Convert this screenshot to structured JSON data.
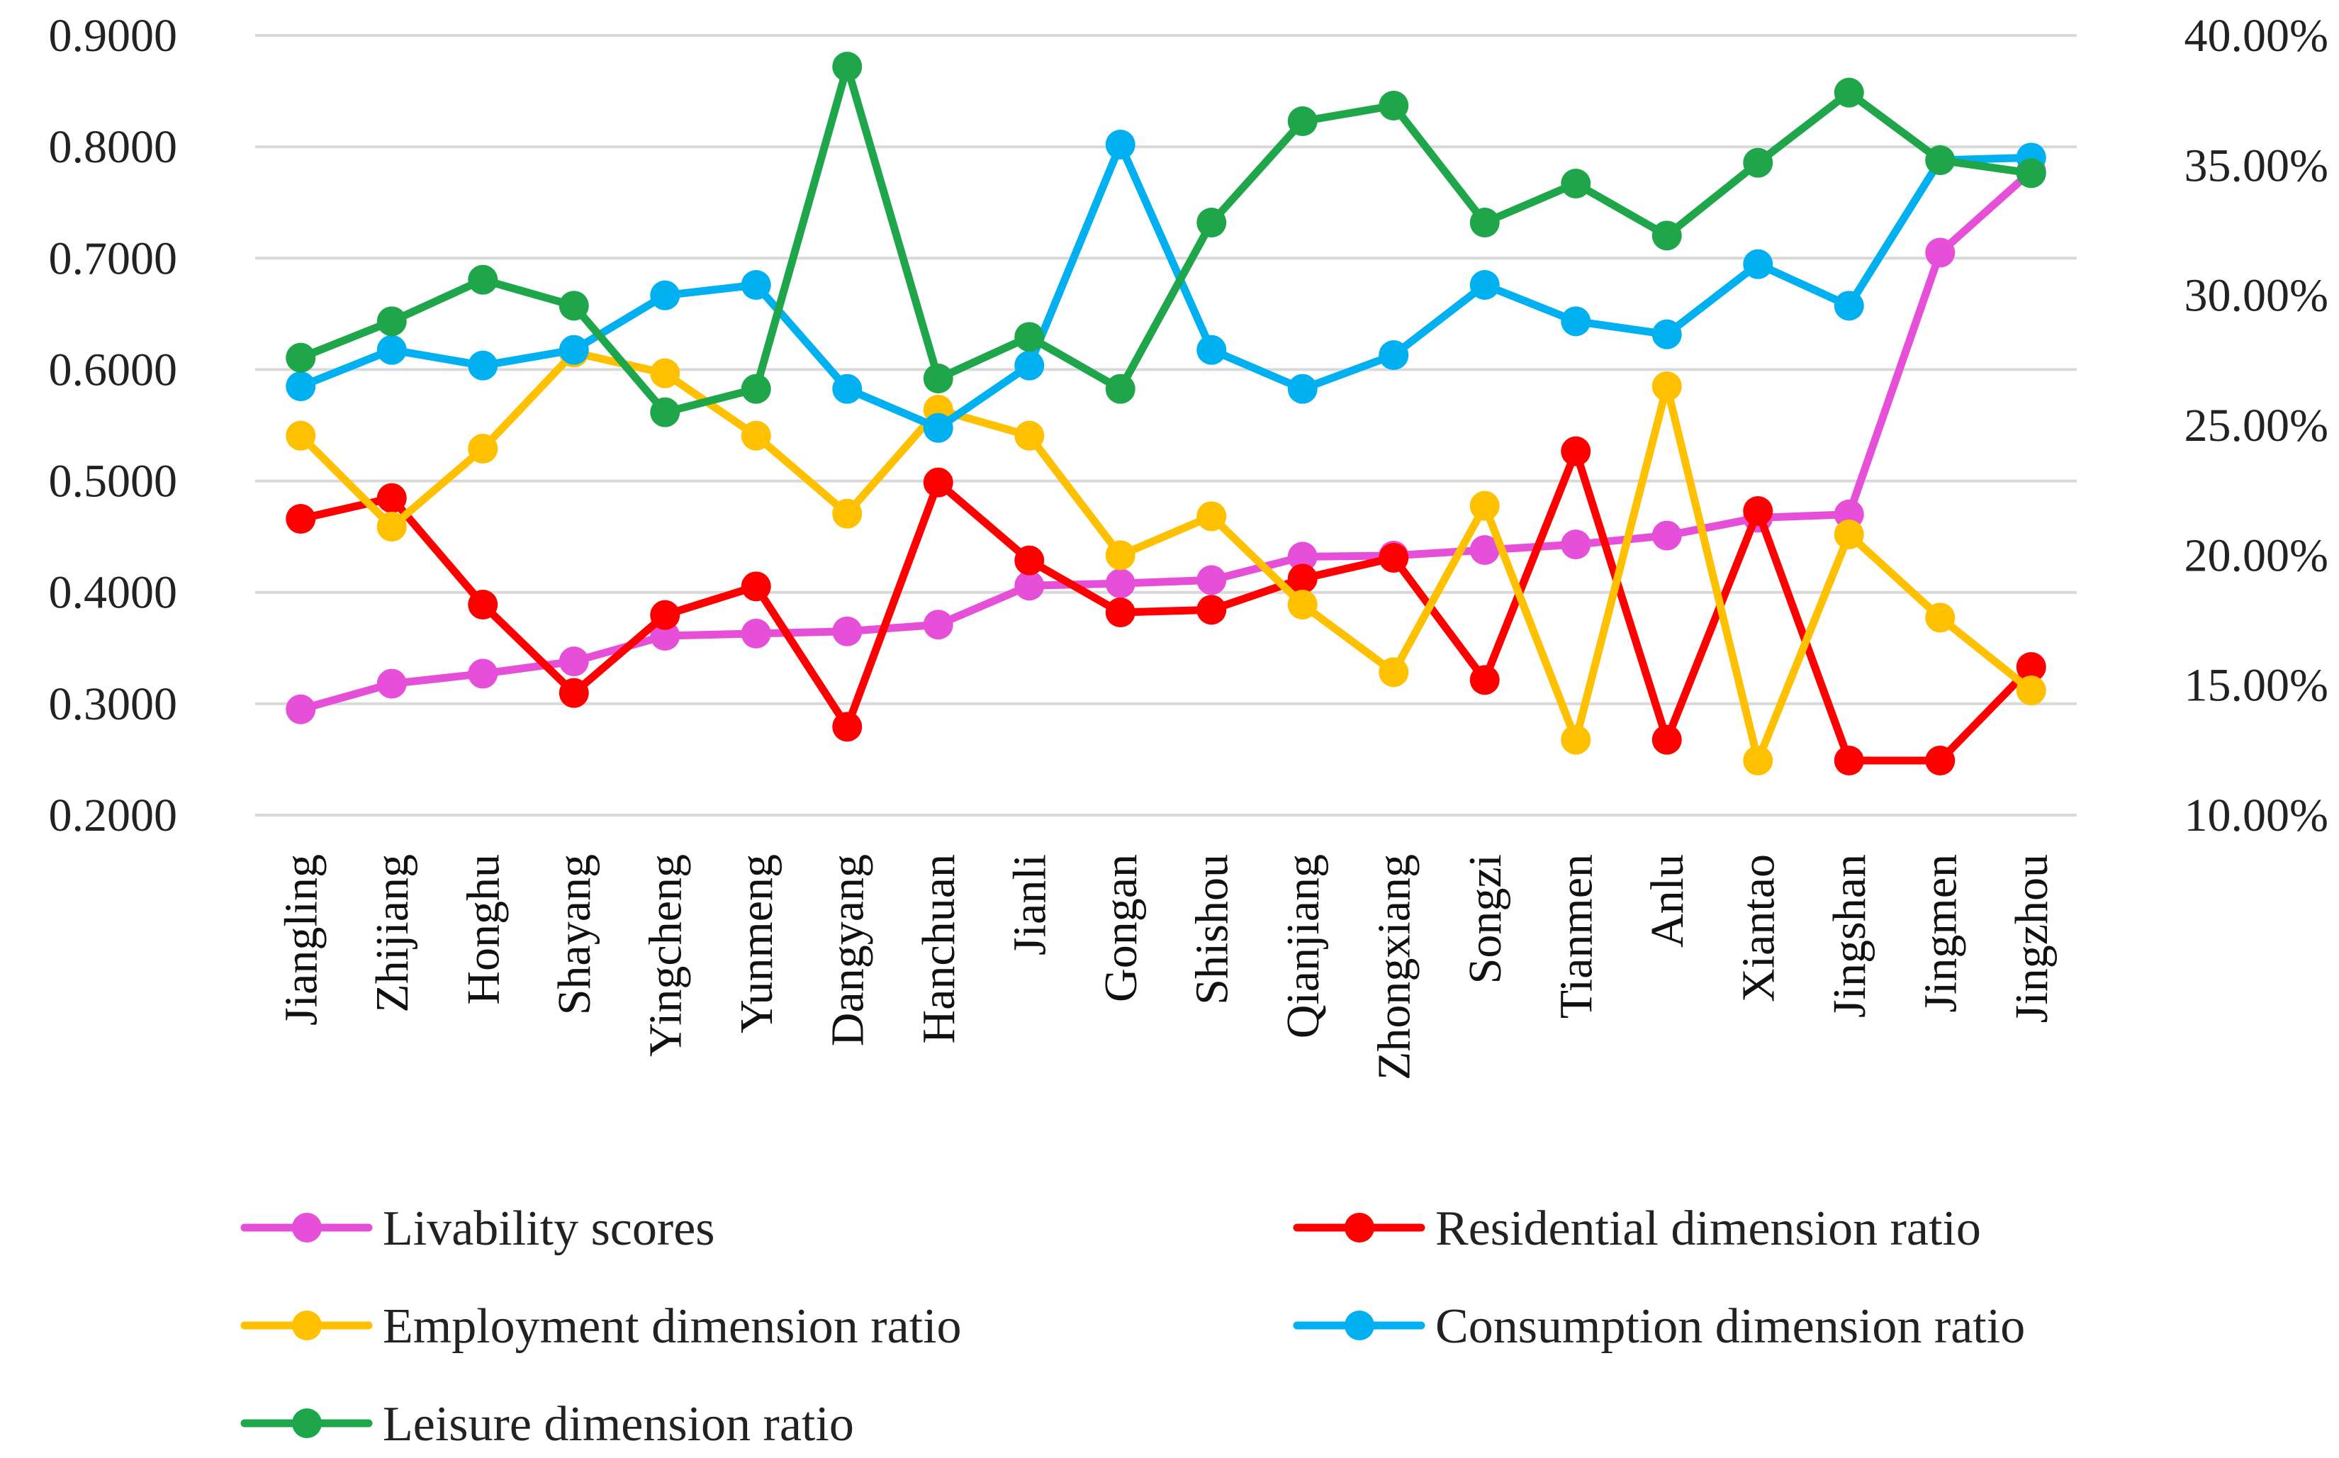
{
  "chart_data": {
    "type": "line",
    "title": "",
    "xlabel": "",
    "ylabel": "",
    "y2label": "",
    "categories": [
      "Jiangling",
      "Zhijiang",
      "Honghu",
      "Shayang",
      "Yingcheng",
      "Yunmeng",
      "Dangyang",
      "Hanchuan",
      "Jianli",
      "Gongan",
      "Shishou",
      "Qianjiang",
      "Zhongxiang",
      "Songzi",
      "Tianmen",
      "Anlu",
      "Xiantao",
      "Jingshan",
      "Jingmen",
      "Jingzhou"
    ],
    "ylim": [
      0.2,
      0.9
    ],
    "y_ticks": [
      "0.9000",
      "0.8000",
      "0.7000",
      "0.6000",
      "0.5000",
      "0.4000",
      "0.3000",
      "0.2000"
    ],
    "y2lim": [
      10,
      40
    ],
    "y2_ticks": [
      "40.00%",
      "35.00%",
      "30.00%",
      "25.00%",
      "20.00%",
      "15.00%",
      "10.00%"
    ],
    "grid": true,
    "legend_position": "bottom",
    "series": [
      {
        "name": "Livability scores",
        "axis": "left",
        "color": "#e64fd8",
        "values": [
          0.295,
          0.318,
          0.327,
          0.338,
          0.361,
          0.363,
          0.365,
          0.371,
          0.406,
          0.408,
          0.411,
          0.432,
          0.433,
          0.438,
          0.443,
          0.451,
          0.467,
          0.47,
          0.705,
          0.778
        ]
      },
      {
        "name": "Residential dimension ratio",
        "axis": "right",
        "color": "#ff0000",
        "values": [
          21.4,
          22.2,
          18.1,
          14.7,
          17.7,
          18.8,
          13.4,
          22.8,
          19.8,
          17.8,
          17.9,
          19.1,
          19.9,
          15.2,
          24.0,
          12.9,
          21.7,
          12.1,
          12.1,
          15.7
        ]
      },
      {
        "name": "Employment dimension ratio",
        "axis": "right",
        "color": "#ffc000",
        "values": [
          24.6,
          21.1,
          24.1,
          27.8,
          27.0,
          24.6,
          21.6,
          25.6,
          24.6,
          20.0,
          21.5,
          18.1,
          15.5,
          21.9,
          12.9,
          26.5,
          12.1,
          20.8,
          17.6,
          14.8
        ]
      },
      {
        "name": "Consumption dimension ratio",
        "axis": "right",
        "color": "#00b0f0",
        "values": [
          26.5,
          27.9,
          27.3,
          27.9,
          30.0,
          30.4,
          26.4,
          24.9,
          27.3,
          35.8,
          27.9,
          26.4,
          27.7,
          30.4,
          29.0,
          28.5,
          31.2,
          29.6,
          35.2,
          35.3
        ]
      },
      {
        "name": "Leisure dimension ratio",
        "axis": "right",
        "color": "#1fa64a",
        "values": [
          27.6,
          29.0,
          30.6,
          29.6,
          25.5,
          26.4,
          38.8,
          26.8,
          28.4,
          26.4,
          32.8,
          36.7,
          37.3,
          32.8,
          34.3,
          32.3,
          35.1,
          37.8,
          35.2,
          34.7
        ]
      }
    ]
  }
}
